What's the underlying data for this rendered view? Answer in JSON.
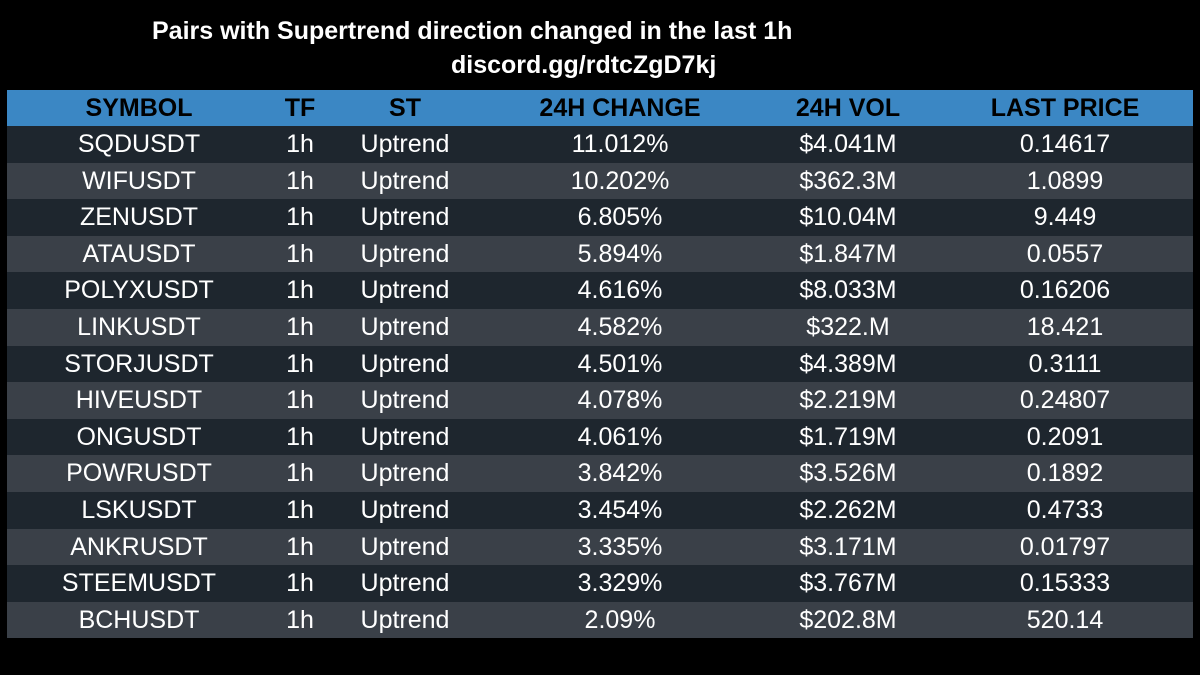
{
  "header": {
    "title": "Pairs with Supertrend direction changed in the last 1h",
    "subtitle": "discord.gg/rdtcZgD7kj"
  },
  "table": {
    "columns": [
      "SYMBOL",
      "TF",
      "ST",
      "24H CHANGE",
      "24H VOL",
      "LAST PRICE"
    ],
    "rows": [
      [
        "SQDUSDT",
        "1h",
        "Uptrend",
        "11.012%",
        "$4.041M",
        "0.14617"
      ],
      [
        "WIFUSDT",
        "1h",
        "Uptrend",
        "10.202%",
        "$362.3M",
        "1.0899"
      ],
      [
        "ZENUSDT",
        "1h",
        "Uptrend",
        "6.805%",
        "$10.04M",
        "9.449"
      ],
      [
        "ATAUSDT",
        "1h",
        "Uptrend",
        "5.894%",
        "$1.847M",
        "0.0557"
      ],
      [
        "POLYXUSDT",
        "1h",
        "Uptrend",
        "4.616%",
        "$8.033M",
        "0.16206"
      ],
      [
        "LINKUSDT",
        "1h",
        "Uptrend",
        "4.582%",
        "$322.M",
        "18.421"
      ],
      [
        "STORJUSDT",
        "1h",
        "Uptrend",
        "4.501%",
        "$4.389M",
        "0.3111"
      ],
      [
        "HIVEUSDT",
        "1h",
        "Uptrend",
        "4.078%",
        "$2.219M",
        "0.24807"
      ],
      [
        "ONGUSDT",
        "1h",
        "Uptrend",
        "4.061%",
        "$1.719M",
        "0.2091"
      ],
      [
        "POWRUSDT",
        "1h",
        "Uptrend",
        "3.842%",
        "$3.526M",
        "0.1892"
      ],
      [
        "LSKUSDT",
        "1h",
        "Uptrend",
        "3.454%",
        "$2.262M",
        "0.4733"
      ],
      [
        "ANKRUSDT",
        "1h",
        "Uptrend",
        "3.335%",
        "$3.171M",
        "0.01797"
      ],
      [
        "STEEMUSDT",
        "1h",
        "Uptrend",
        "3.329%",
        "$3.767M",
        "0.15333"
      ],
      [
        "BCHUSDT",
        "1h",
        "Uptrend",
        "2.09%",
        "$202.8M",
        "520.14"
      ]
    ]
  },
  "colors": {
    "background": "#000000",
    "header_row": "#3b87c4",
    "row_dark": "#1e262e",
    "row_light": "#3a4048",
    "text": "#ffffff",
    "header_text": "#000000"
  }
}
